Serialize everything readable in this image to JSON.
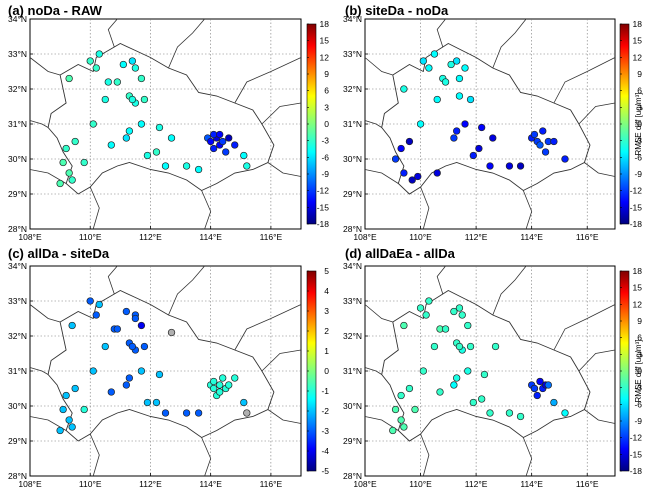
{
  "figure": {
    "panels": [
      {
        "title": "(a) noDa - RAW",
        "colorbar": {
          "ticks": [
            "18",
            "15",
            "12",
            "9",
            "6",
            "3",
            "0",
            "-3",
            "-6",
            "-9",
            "-12",
            "-15",
            "-18"
          ],
          "label": "",
          "min": -18,
          "max": 18
        }
      },
      {
        "title": "(b) siteDa - noDa",
        "colorbar": {
          "ticks": [
            "18",
            "15",
            "12",
            "9",
            "6",
            "3",
            "0",
            "-3",
            "-6",
            "-9",
            "-12",
            "-15",
            "-18"
          ],
          "label": "RMSE diff [ug/m³]",
          "min": -18,
          "max": 18
        }
      },
      {
        "title": "(c) allDa - siteDa",
        "colorbar": {
          "ticks": [
            "5",
            "4",
            "3",
            "2",
            "1",
            "0",
            "-1",
            "-2",
            "-3",
            "-4",
            "-5"
          ],
          "label": "",
          "min": -5,
          "max": 5
        }
      },
      {
        "title": "(d) allDaEa - allDa",
        "colorbar": {
          "ticks": [
            "18",
            "15",
            "12",
            "9",
            "6",
            "3",
            "0",
            "-3",
            "-6",
            "-9",
            "-12",
            "-15",
            "-18"
          ],
          "label": "RMSE diff [ug/m³]",
          "min": -18,
          "max": 18
        }
      }
    ],
    "lat_labels": [
      "34°N",
      "33°N",
      "32°N",
      "31°N",
      "30°N",
      "29°N",
      "28°N"
    ],
    "lon_labels": [
      "108°E",
      "110°E",
      "112°E",
      "114°E",
      "116°E"
    ],
    "colormap": [
      "#00007f",
      "#0000ff",
      "#007fff",
      "#00ffff",
      "#7fff7f",
      "#ffff00",
      "#ff7f00",
      "#ff0000",
      "#7f0000"
    ]
  },
  "chart_data": [
    {
      "type": "scatter",
      "title": "(a) noDa - RAW",
      "xlim": [
        108,
        117
      ],
      "ylim": [
        28,
        34
      ],
      "x": [
        110.0,
        110.2,
        110.3,
        110.6,
        110.1,
        109.3,
        109.5,
        109.2,
        109.1,
        109.3,
        109.4,
        109.0,
        109.8,
        110.7,
        110.5,
        110.9,
        111.1,
        111.4,
        111.5,
        111.7,
        111.3,
        111.5,
        111.4,
        111.8,
        111.7,
        111.2,
        111.3,
        112.3,
        112.2,
        111.9,
        112.7,
        112.5,
        113.2,
        113.6,
        113.9,
        114.0,
        114.1,
        114.2,
        114.3,
        114.4,
        114.1,
        114.3,
        114.6,
        114.5,
        114.8,
        115.1,
        115.2
      ],
      "y": [
        32.8,
        32.6,
        33.0,
        32.2,
        31.0,
        32.3,
        30.5,
        30.3,
        29.9,
        29.6,
        29.4,
        29.3,
        29.9,
        30.4,
        31.7,
        32.2,
        32.7,
        32.8,
        32.6,
        32.3,
        31.8,
        31.6,
        31.7,
        31.7,
        31.0,
        30.6,
        30.8,
        30.9,
        30.2,
        30.1,
        30.6,
        29.8,
        29.8,
        29.7,
        30.6,
        30.5,
        30.3,
        30.6,
        30.4,
        30.5,
        30.7,
        30.7,
        30.6,
        30.2,
        30.4,
        30.1,
        29.8
      ],
      "values": [
        -3,
        -3,
        -4,
        -4,
        -3,
        -2,
        -3,
        -3,
        -2,
        -2,
        -3,
        -2,
        -3,
        -5,
        -4,
        -3,
        -5,
        -6,
        -4,
        -3,
        -3,
        -4,
        -4,
        -3,
        -5,
        -6,
        -5,
        -4,
        -3,
        -4,
        -5,
        -5,
        -4,
        -5,
        -11,
        -14,
        -13,
        -15,
        -14,
        -12,
        -13,
        -14,
        -16,
        -12,
        -13,
        -5,
        -4
      ],
      "colorbar_range": [
        -18,
        18
      ]
    },
    {
      "type": "scatter",
      "title": "(b) siteDa - noDa",
      "xlim": [
        108,
        117
      ],
      "ylim": [
        28,
        34
      ],
      "x": [
        110.1,
        110.3,
        110.5,
        110.8,
        110.0,
        109.4,
        109.6,
        109.3,
        109.1,
        109.4,
        109.7,
        109.9,
        110.6,
        110.6,
        110.9,
        111.1,
        111.3,
        111.6,
        111.4,
        111.4,
        111.8,
        111.6,
        111.2,
        111.3,
        112.2,
        112.1,
        111.9,
        112.6,
        112.5,
        113.2,
        113.6,
        114.0,
        114.2,
        114.3,
        114.1,
        114.4,
        114.6,
        114.5,
        114.8,
        115.2
      ],
      "y": [
        32.8,
        32.6,
        33.0,
        32.3,
        31.0,
        32.0,
        30.5,
        30.3,
        30.0,
        29.6,
        29.4,
        29.5,
        29.6,
        31.7,
        32.2,
        32.7,
        32.8,
        32.6,
        32.3,
        31.8,
        31.7,
        31.0,
        30.6,
        30.8,
        30.9,
        30.3,
        30.1,
        30.6,
        29.8,
        29.8,
        29.8,
        30.6,
        30.5,
        30.4,
        30.7,
        30.8,
        30.5,
        30.2,
        30.5,
        30.0
      ],
      "values": [
        -6,
        -5,
        -5,
        -4,
        -5,
        -4,
        -16,
        -14,
        -12,
        -13,
        -16,
        -15,
        -15,
        -5,
        -4,
        -4,
        -6,
        -5,
        -5,
        -5,
        -6,
        -14,
        -12,
        -13,
        -14,
        -15,
        -13,
        -15,
        -14,
        -15,
        -16,
        -13,
        -12,
        -11,
        -12,
        -13,
        -12,
        -12,
        -13,
        -13
      ],
      "colorbar_range": [
        -18,
        18
      ]
    },
    {
      "type": "scatter",
      "title": "(c) allDa - siteDa",
      "xlim": [
        108,
        117
      ],
      "ylim": [
        28,
        34
      ],
      "x": [
        110.0,
        110.2,
        110.3,
        110.8,
        110.1,
        109.4,
        109.5,
        109.2,
        109.1,
        109.3,
        109.4,
        109.0,
        109.8,
        110.7,
        110.5,
        110.9,
        111.2,
        111.5,
        111.5,
        111.7,
        111.3,
        111.5,
        111.4,
        111.8,
        111.7,
        111.2,
        111.3,
        112.3,
        112.2,
        111.9,
        112.7,
        112.5,
        113.2,
        113.6,
        114.0,
        114.1,
        114.2,
        114.3,
        114.5,
        114.4,
        114.1,
        114.3,
        114.6,
        114.8,
        115.1,
        115.2
      ],
      "y": [
        33.0,
        32.6,
        32.9,
        32.2,
        31.0,
        32.3,
        30.5,
        30.3,
        29.9,
        29.6,
        29.4,
        29.3,
        29.9,
        30.4,
        31.7,
        32.2,
        32.7,
        32.6,
        32.5,
        32.3,
        31.8,
        31.6,
        31.7,
        31.7,
        31.0,
        30.6,
        30.8,
        30.9,
        30.1,
        30.1,
        32.1,
        29.8,
        29.8,
        29.8,
        30.6,
        30.5,
        30.3,
        30.6,
        30.5,
        30.8,
        30.7,
        30.4,
        30.6,
        30.8,
        30.1,
        29.8
      ],
      "values": [
        -3,
        -3,
        -2,
        -3,
        -2,
        -2,
        -2,
        -2,
        -2,
        -2,
        -2,
        -2,
        -1,
        -3,
        -2,
        -3,
        -3,
        -3,
        -3,
        -4,
        -3,
        -3,
        -3,
        -3,
        -2,
        -3,
        -3,
        -2,
        -2,
        -2,
        0,
        -3,
        -3,
        -3,
        -1,
        -1,
        -1,
        -1,
        -1,
        -1,
        -1,
        -1,
        -1,
        -1,
        -2,
        0
      ],
      "colorbar_range": [
        -5,
        5
      ]
    },
    {
      "type": "scatter",
      "title": "(d) allDaEa - allDa",
      "xlim": [
        108,
        117
      ],
      "ylim": [
        28,
        34
      ],
      "x": [
        110.0,
        110.2,
        110.3,
        110.7,
        110.1,
        109.4,
        109.6,
        109.3,
        109.1,
        109.3,
        109.4,
        109.0,
        109.8,
        110.7,
        110.5,
        110.9,
        111.2,
        111.4,
        111.5,
        111.7,
        111.3,
        111.5,
        111.4,
        111.8,
        111.7,
        111.2,
        111.3,
        112.3,
        112.2,
        111.9,
        112.7,
        112.5,
        113.2,
        113.6,
        114.0,
        114.1,
        114.2,
        114.3,
        114.4,
        114.5,
        114.1,
        114.3,
        114.6,
        114.8,
        115.2
      ],
      "y": [
        32.8,
        32.6,
        33.0,
        32.2,
        31.0,
        32.3,
        30.5,
        30.3,
        29.9,
        29.6,
        29.4,
        29.3,
        29.9,
        30.4,
        31.7,
        32.2,
        32.7,
        32.8,
        32.6,
        32.3,
        31.8,
        31.6,
        31.7,
        31.7,
        31.0,
        30.6,
        30.8,
        30.9,
        30.2,
        30.1,
        31.7,
        29.8,
        29.8,
        29.7,
        30.6,
        30.5,
        30.3,
        30.7,
        30.5,
        30.6,
        30.5,
        30.7,
        30.6,
        30.1,
        29.8
      ],
      "values": [
        -3,
        -3,
        -3,
        -2,
        -3,
        -2,
        -3,
        -3,
        -2,
        -2,
        -2,
        -2,
        -2,
        -3,
        -3,
        -3,
        -3,
        -3,
        -3,
        -3,
        -3,
        -4,
        -3,
        -3,
        -4,
        -5,
        -4,
        -3,
        -3,
        -3,
        -3,
        -3,
        -3,
        -3,
        -12,
        -14,
        -13,
        -14,
        -13,
        -15,
        -12,
        -14,
        -10,
        -8,
        -5
      ],
      "colorbar_range": [
        -18,
        18
      ]
    }
  ]
}
